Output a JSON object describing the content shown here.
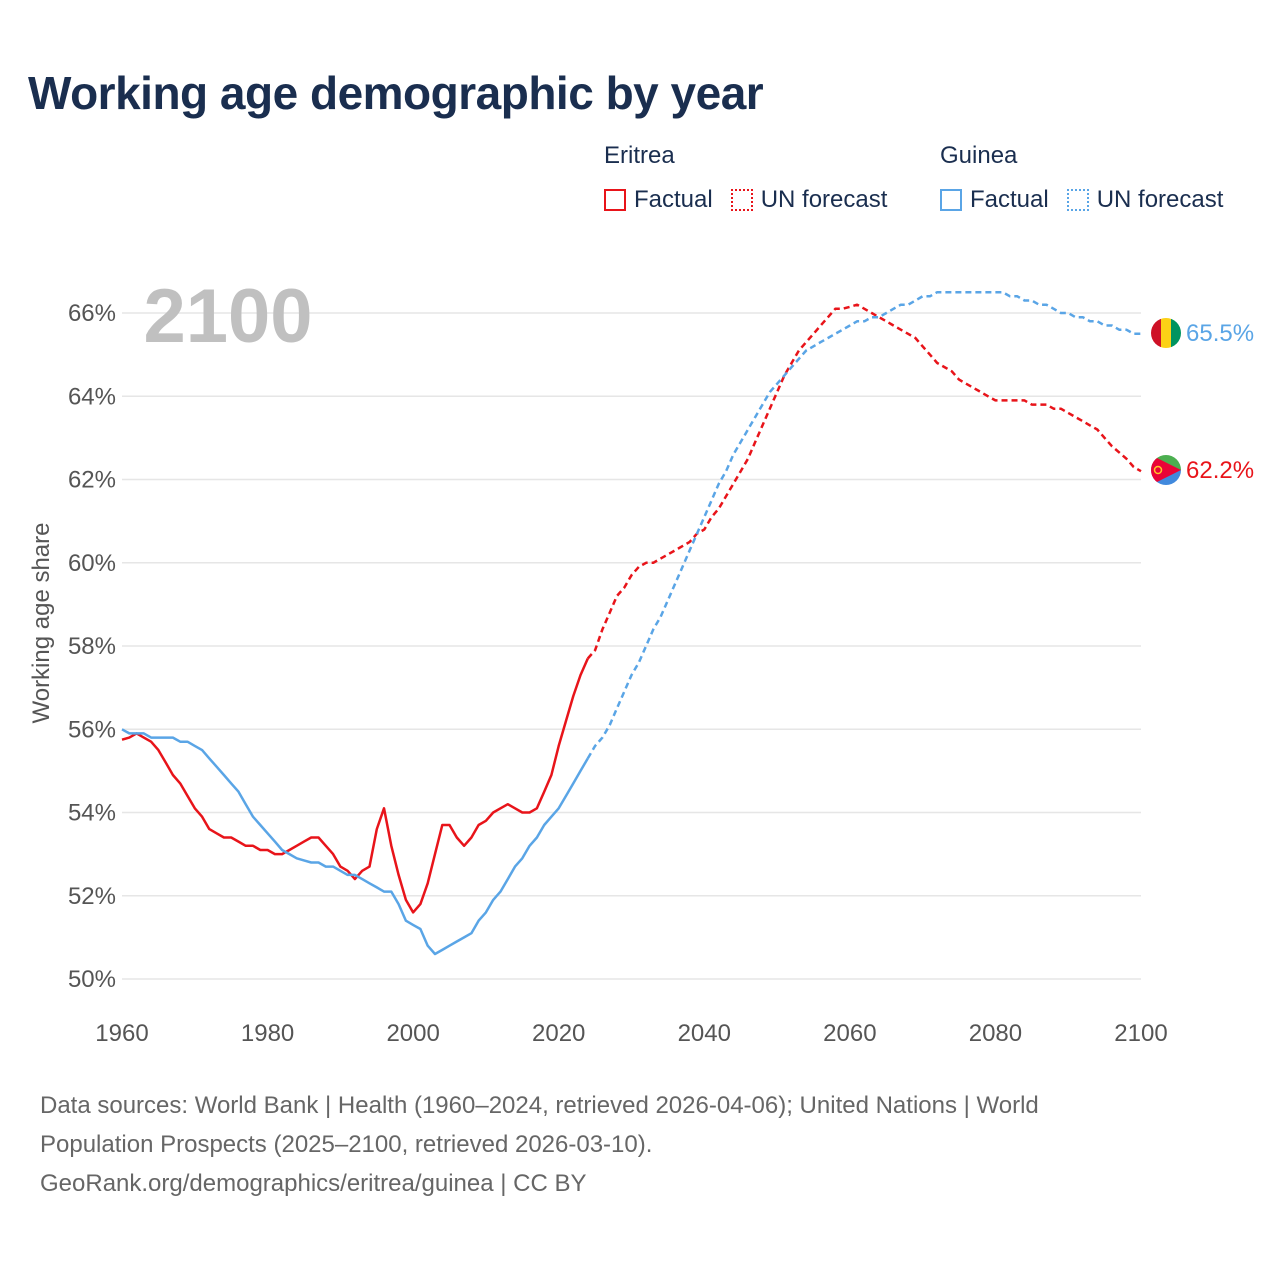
{
  "title": "Working age demographic by year",
  "year_overlay": "2100",
  "legend": {
    "eritrea": {
      "name": "Eritrea",
      "factual": "Factual",
      "forecast": "UN forecast"
    },
    "guinea": {
      "name": "Guinea",
      "factual": "Factual",
      "forecast": "UN forecast"
    }
  },
  "colors": {
    "eritrea": "#e8141a",
    "guinea": "#5aa5e6",
    "grid": "#e6e6e6",
    "axis_text": "#555555"
  },
  "footer": {
    "line1": "Data sources: World Bank | Health (1960–2024, retrieved 2026-04-06); United Nations | World",
    "line2": "Population Prospects (2025–2100, retrieved 2026-03-10).",
    "line3": "GeoRank.org/demographics/eritrea/guinea | CC BY"
  },
  "chart_data": {
    "type": "line",
    "title": "Working age demographic by year",
    "xlabel": "",
    "ylabel": "Working age share",
    "xlim": [
      1960,
      2100
    ],
    "ylim": [
      50,
      66.8
    ],
    "x_ticks": [
      1960,
      1980,
      2000,
      2020,
      2040,
      2060,
      2080,
      2100
    ],
    "y_ticks": [
      50,
      52,
      54,
      56,
      58,
      60,
      62,
      64,
      66
    ],
    "y_tick_suffix": "%",
    "grid": true,
    "forecast_start": 2024,
    "end_labels": {
      "Eritrea": "62.2%",
      "Guinea": "65.5%"
    },
    "series": [
      {
        "name": "Eritrea",
        "x": [
          1960,
          1961,
          1962,
          1963,
          1964,
          1965,
          1966,
          1967,
          1968,
          1969,
          1970,
          1971,
          1972,
          1973,
          1974,
          1975,
          1976,
          1977,
          1978,
          1979,
          1980,
          1981,
          1982,
          1983,
          1984,
          1985,
          1986,
          1987,
          1988,
          1989,
          1990,
          1991,
          1992,
          1993,
          1994,
          1995,
          1996,
          1997,
          1998,
          1999,
          2000,
          2001,
          2002,
          2003,
          2004,
          2005,
          2006,
          2007,
          2008,
          2009,
          2010,
          2011,
          2012,
          2013,
          2014,
          2015,
          2016,
          2017,
          2018,
          2019,
          2020,
          2021,
          2022,
          2023,
          2024,
          2025,
          2026,
          2027,
          2028,
          2029,
          2030,
          2031,
          2032,
          2033,
          2034,
          2035,
          2036,
          2037,
          2038,
          2039,
          2040,
          2041,
          2042,
          2043,
          2044,
          2045,
          2046,
          2047,
          2048,
          2049,
          2050,
          2051,
          2052,
          2053,
          2054,
          2055,
          2056,
          2057,
          2058,
          2059,
          2060,
          2061,
          2062,
          2063,
          2064,
          2065,
          2066,
          2067,
          2068,
          2069,
          2070,
          2071,
          2072,
          2073,
          2074,
          2075,
          2076,
          2077,
          2078,
          2079,
          2080,
          2081,
          2082,
          2083,
          2084,
          2085,
          2086,
          2087,
          2088,
          2089,
          2090,
          2091,
          2092,
          2093,
          2094,
          2095,
          2096,
          2097,
          2098,
          2099,
          2100
        ],
        "values": [
          55.75,
          55.8,
          55.9,
          55.8,
          55.7,
          55.5,
          55.2,
          54.9,
          54.7,
          54.4,
          54.1,
          53.9,
          53.6,
          53.5,
          53.4,
          53.4,
          53.3,
          53.2,
          53.2,
          53.1,
          53.1,
          53.0,
          53.0,
          53.1,
          53.2,
          53.3,
          53.4,
          53.4,
          53.2,
          53.0,
          52.7,
          52.6,
          52.4,
          52.6,
          52.7,
          53.6,
          54.1,
          53.2,
          52.5,
          51.9,
          51.6,
          51.8,
          52.3,
          53.0,
          53.7,
          53.7,
          53.4,
          53.2,
          53.4,
          53.7,
          53.8,
          54.0,
          54.1,
          54.2,
          54.1,
          54.0,
          54.0,
          54.1,
          54.5,
          54.9,
          55.6,
          56.2,
          56.8,
          57.3,
          57.7,
          57.9,
          58.4,
          58.8,
          59.2,
          59.4,
          59.7,
          59.9,
          60.0,
          60.0,
          60.1,
          60.2,
          60.3,
          60.4,
          60.5,
          60.7,
          60.8,
          61.1,
          61.3,
          61.6,
          61.9,
          62.2,
          62.5,
          62.9,
          63.3,
          63.7,
          64.1,
          64.5,
          64.8,
          65.1,
          65.3,
          65.5,
          65.7,
          65.9,
          66.1,
          66.1,
          66.15,
          66.2,
          66.1,
          66.0,
          65.9,
          65.8,
          65.7,
          65.6,
          65.5,
          65.4,
          65.2,
          65.0,
          64.8,
          64.7,
          64.6,
          64.4,
          64.3,
          64.2,
          64.1,
          64.0,
          63.9,
          63.9,
          63.9,
          63.9,
          63.9,
          63.8,
          63.8,
          63.8,
          63.7,
          63.7,
          63.6,
          63.5,
          63.4,
          63.3,
          63.2,
          63.0,
          62.8,
          62.65,
          62.5,
          62.3,
          62.2
        ]
      },
      {
        "name": "Guinea",
        "x": [
          1960,
          1961,
          1962,
          1963,
          1964,
          1965,
          1966,
          1967,
          1968,
          1969,
          1970,
          1971,
          1972,
          1973,
          1974,
          1975,
          1976,
          1977,
          1978,
          1979,
          1980,
          1981,
          1982,
          1983,
          1984,
          1985,
          1986,
          1987,
          1988,
          1989,
          1990,
          1991,
          1992,
          1993,
          1994,
          1995,
          1996,
          1997,
          1998,
          1999,
          2000,
          2001,
          2002,
          2003,
          2004,
          2005,
          2006,
          2007,
          2008,
          2009,
          2010,
          2011,
          2012,
          2013,
          2014,
          2015,
          2016,
          2017,
          2018,
          2019,
          2020,
          2021,
          2022,
          2023,
          2024,
          2025,
          2026,
          2027,
          2028,
          2029,
          2030,
          2031,
          2032,
          2033,
          2034,
          2035,
          2036,
          2037,
          2038,
          2039,
          2040,
          2041,
          2042,
          2043,
          2044,
          2045,
          2046,
          2047,
          2048,
          2049,
          2050,
          2051,
          2052,
          2053,
          2054,
          2055,
          2056,
          2057,
          2058,
          2059,
          2060,
          2061,
          2062,
          2063,
          2064,
          2065,
          2066,
          2067,
          2068,
          2069,
          2070,
          2071,
          2072,
          2073,
          2074,
          2075,
          2076,
          2077,
          2078,
          2079,
          2080,
          2081,
          2082,
          2083,
          2084,
          2085,
          2086,
          2087,
          2088,
          2089,
          2090,
          2091,
          2092,
          2093,
          2094,
          2095,
          2096,
          2097,
          2098,
          2099,
          2100
        ],
        "values": [
          56.0,
          55.9,
          55.9,
          55.9,
          55.8,
          55.8,
          55.8,
          55.8,
          55.7,
          55.7,
          55.6,
          55.5,
          55.3,
          55.1,
          54.9,
          54.7,
          54.5,
          54.2,
          53.9,
          53.7,
          53.5,
          53.3,
          53.1,
          53.0,
          52.9,
          52.85,
          52.8,
          52.8,
          52.7,
          52.7,
          52.6,
          52.5,
          52.5,
          52.4,
          52.3,
          52.2,
          52.1,
          52.1,
          51.8,
          51.4,
          51.3,
          51.2,
          50.8,
          50.6,
          50.7,
          50.8,
          50.9,
          51.0,
          51.1,
          51.4,
          51.6,
          51.9,
          52.1,
          52.4,
          52.7,
          52.9,
          53.2,
          53.4,
          53.7,
          53.9,
          54.1,
          54.4,
          54.7,
          55.0,
          55.3,
          55.6,
          55.8,
          56.1,
          56.5,
          56.9,
          57.3,
          57.6,
          58.0,
          58.4,
          58.7,
          59.1,
          59.5,
          59.9,
          60.3,
          60.7,
          61.1,
          61.5,
          61.9,
          62.2,
          62.6,
          62.9,
          63.2,
          63.5,
          63.8,
          64.1,
          64.3,
          64.5,
          64.7,
          64.9,
          65.1,
          65.2,
          65.3,
          65.4,
          65.5,
          65.6,
          65.7,
          65.8,
          65.8,
          65.9,
          65.9,
          66.0,
          66.1,
          66.2,
          66.2,
          66.3,
          66.4,
          66.4,
          66.5,
          66.5,
          66.5,
          66.5,
          66.5,
          66.5,
          66.5,
          66.5,
          66.5,
          66.5,
          66.4,
          66.4,
          66.3,
          66.3,
          66.2,
          66.2,
          66.1,
          66.0,
          66.0,
          65.9,
          65.9,
          65.8,
          65.8,
          65.7,
          65.7,
          65.6,
          65.6,
          65.5,
          65.5
        ]
      }
    ]
  }
}
